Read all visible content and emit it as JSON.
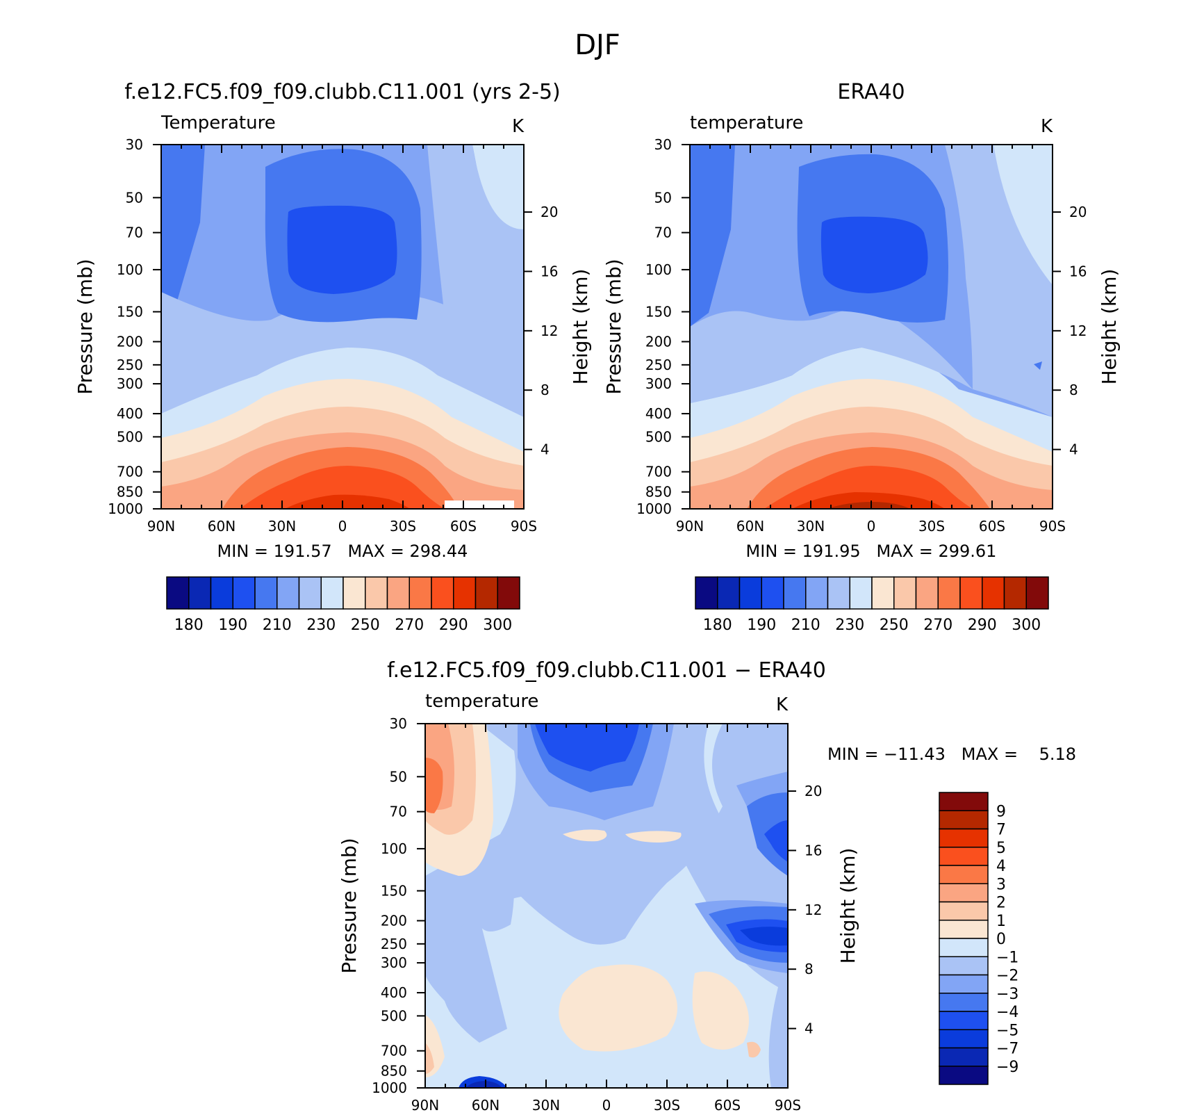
{
  "figure_title": "DJF",
  "chart_data": [
    {
      "type": "heatmap",
      "title": "f.e12.FC5.f09_f09.clubb.C11.001 (yrs 2-5)",
      "subtitle_left": "Temperature",
      "subtitle_right": "K",
      "xlabel": "",
      "ylabel": "Pressure (mb)",
      "ylabel_right": "Height (km)",
      "x_ticks": [
        "90N",
        "60N",
        "30N",
        "0",
        "30S",
        "60S",
        "90S"
      ],
      "y_ticks": [
        30,
        50,
        70,
        100,
        150,
        200,
        250,
        300,
        400,
        500,
        700,
        850,
        1000
      ],
      "y_right_ticks": [
        4,
        8,
        12,
        16,
        20
      ],
      "ylim": [
        1000,
        30
      ],
      "stats": "MIN = 191.57   MAX = 298.44",
      "contour_levels": [
        180,
        185,
        190,
        200,
        210,
        220,
        230,
        240,
        250,
        260,
        270,
        280,
        290,
        295,
        300
      ],
      "colorbar_labels": [
        "180",
        "190",
        "210",
        "230",
        "250",
        "270",
        "290",
        "300"
      ]
    },
    {
      "type": "heatmap",
      "title": "ERA40",
      "subtitle_left": "temperature",
      "subtitle_right": "K",
      "xlabel": "",
      "ylabel": "Pressure (mb)",
      "ylabel_right": "Height (km)",
      "x_ticks": [
        "90N",
        "60N",
        "30N",
        "0",
        "30S",
        "60S",
        "90S"
      ],
      "y_ticks": [
        30,
        50,
        70,
        100,
        150,
        200,
        250,
        300,
        400,
        500,
        700,
        850,
        1000
      ],
      "y_right_ticks": [
        4,
        8,
        12,
        16,
        20
      ],
      "ylim": [
        1000,
        30
      ],
      "stats": "MIN = 191.95   MAX = 299.61",
      "contour_levels": [
        180,
        185,
        190,
        200,
        210,
        220,
        230,
        240,
        250,
        260,
        270,
        280,
        290,
        295,
        300
      ],
      "colorbar_labels": [
        "180",
        "190",
        "210",
        "230",
        "250",
        "270",
        "290",
        "300"
      ]
    },
    {
      "type": "heatmap",
      "title": "f.e12.FC5.f09_f09.clubb.C11.001 − ERA40",
      "subtitle_left": "temperature",
      "subtitle_right": "K",
      "xlabel": "",
      "ylabel": "Pressure (mb)",
      "ylabel_right": "Height (km)",
      "x_ticks": [
        "90N",
        "60N",
        "30N",
        "0",
        "30S",
        "60S",
        "90S"
      ],
      "y_ticks": [
        30,
        50,
        70,
        100,
        150,
        200,
        250,
        300,
        400,
        500,
        700,
        850,
        1000
      ],
      "y_right_ticks": [
        4,
        8,
        12,
        16,
        20
      ],
      "ylim": [
        1000,
        30
      ],
      "stats": "MIN = −11.43   MAX =    5.18",
      "contour_levels": [
        -9,
        -7,
        -5,
        -4,
        -3,
        -2,
        -1,
        0,
        1,
        2,
        3,
        4,
        5,
        7,
        9
      ],
      "colorbar_labels": [
        "9",
        "7",
        "5",
        "4",
        "3",
        "2",
        "1",
        "0",
        "−1",
        "−2",
        "−3",
        "−4",
        "−5",
        "−7",
        "−9"
      ]
    }
  ],
  "colors": {
    "abs_palette": [
      "#0a0a82",
      "#0a28b4",
      "#0a3cdc",
      "#1e50f0",
      "#4678f0",
      "#82a5f5",
      "#aac3f5",
      "#d2e6fa",
      "#fae6d2",
      "#fac8aa",
      "#faa582",
      "#fa7846",
      "#fa501e",
      "#e63200",
      "#b42800",
      "#820a0a"
    ],
    "diff_palette": [
      "#820a0a",
      "#b42800",
      "#e63200",
      "#fa501e",
      "#fa7846",
      "#faa582",
      "#fac8aa",
      "#fae6d2",
      "#d2e6fa",
      "#aac3f5",
      "#82a5f5",
      "#4678f0",
      "#1e50f0",
      "#0a3cdc",
      "#0a28b4",
      "#0a0a82"
    ]
  }
}
